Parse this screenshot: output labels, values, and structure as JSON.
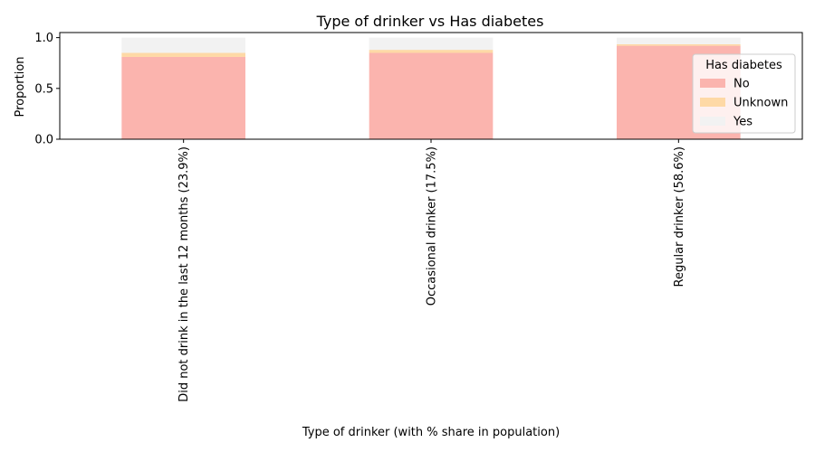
{
  "chart_data": {
    "type": "bar",
    "stacked": true,
    "title": "Type of drinker vs Has diabetes",
    "xlabel": "Type of drinker (with % share in population)",
    "ylabel": "Proportion",
    "ylim": [
      0,
      1.05
    ],
    "yticks": [
      "0.0",
      "0.5",
      "1.0"
    ],
    "grid": false,
    "legend": {
      "title": "Has diabetes",
      "placement": "right"
    },
    "categories": [
      "Did not drink in the last 12 months (23.9%)",
      "Occasional drinker (17.5%)",
      "Regular drinker (58.6%)"
    ],
    "series": [
      {
        "name": "No",
        "color": "#fbb4ae",
        "values": [
          0.81,
          0.85,
          0.92
        ]
      },
      {
        "name": "Unknown",
        "color": "#fed9a6",
        "values": [
          0.04,
          0.03,
          0.015
        ]
      },
      {
        "name": "Yes",
        "color": "#f2f2f2",
        "values": [
          0.15,
          0.12,
          0.065
        ]
      }
    ]
  }
}
